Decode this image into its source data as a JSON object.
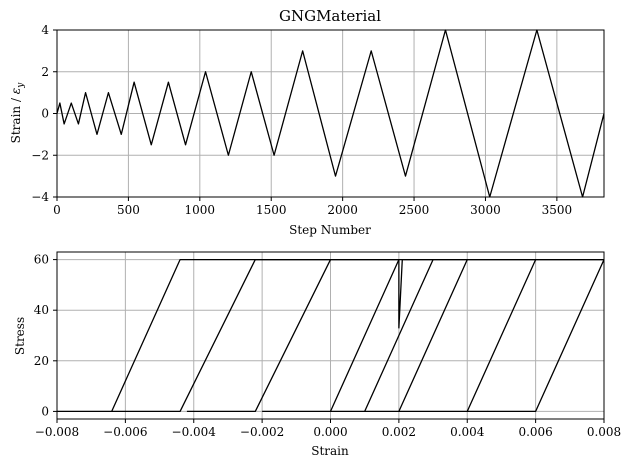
{
  "chart_data": [
    {
      "type": "line",
      "title": "GNGMaterial",
      "xlabel": "Step Number",
      "ylabel": "Strain / ε_y",
      "xlim": [
        0,
        3830
      ],
      "ylim": [
        -4,
        4
      ],
      "xticks": [
        0,
        500,
        1000,
        1500,
        2000,
        2500,
        3000,
        3500
      ],
      "yticks": [
        -4,
        -2,
        0,
        2,
        4
      ],
      "grid": true,
      "series": [
        {
          "x": [
            0,
            20,
            50,
            100,
            150,
            200,
            280,
            360,
            450,
            540,
            660,
            780,
            900,
            1040,
            1200,
            1360,
            1520,
            1720,
            1950,
            2200,
            2440,
            2720,
            3030,
            3360,
            3680,
            3830
          ],
          "y": [
            0,
            0.5,
            -0.5,
            0.5,
            -0.5,
            1,
            -1,
            1,
            -1,
            1.5,
            -1.5,
            1.5,
            -1.5,
            2,
            -2,
            2,
            -2,
            3,
            -3,
            3,
            -3,
            4,
            -4,
            4,
            -4,
            0
          ]
        }
      ]
    },
    {
      "type": "line",
      "title": "",
      "xlabel": "Strain",
      "ylabel": "Stress",
      "xlim": [
        -0.008,
        0.008
      ],
      "ylim": [
        -3,
        63
      ],
      "xticks": [
        -0.008,
        -0.006,
        -0.004,
        -0.002,
        0.0,
        0.002,
        0.004,
        0.006,
        0.008
      ],
      "xtick_labels": [
        "−0.008",
        "−0.006",
        "−0.004",
        "−0.002",
        "0.000",
        "0.002",
        "0.004",
        "0.006",
        "0.008"
      ],
      "yticks": [
        0,
        20,
        40,
        60
      ],
      "grid": true,
      "series": [
        {
          "x": [
            -0.008,
            -0.0064,
            -0.0044,
            0.002,
            0.002,
            0.0021,
            0.008
          ],
          "y": [
            0,
            0,
            60,
            60,
            33,
            60,
            60
          ]
        },
        {
          "x": [
            -0.0064,
            -0.0044,
            -0.0022,
            0.0
          ],
          "y": [
            0,
            0,
            60,
            60
          ]
        },
        {
          "x": [
            -0.0042,
            -0.0022,
            0.0,
            0.002,
            0.003
          ],
          "y": [
            0,
            0,
            60,
            60,
            60
          ]
        },
        {
          "x": [
            -0.002,
            0.0,
            0.002
          ],
          "y": [
            0,
            0,
            60
          ]
        },
        {
          "x": [
            0.0,
            0.001,
            0.003,
            0.004
          ],
          "y": [
            0,
            0,
            60,
            60
          ]
        },
        {
          "x": [
            0.001,
            0.002,
            0.004,
            0.006
          ],
          "y": [
            0,
            0,
            60,
            60
          ]
        },
        {
          "x": [
            0.002,
            0.004,
            0.006,
            0.008
          ],
          "y": [
            0,
            0,
            60,
            60
          ]
        },
        {
          "x": [
            0.004,
            0.006,
            0.008
          ],
          "y": [
            0,
            0,
            60
          ]
        }
      ]
    }
  ]
}
